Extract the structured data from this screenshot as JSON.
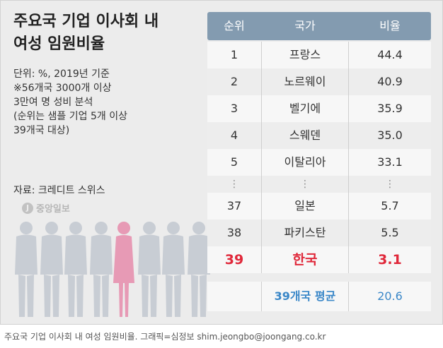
{
  "title_line1": "주요국 기업 이사회 내",
  "title_line2": "여성 임원비율",
  "unit": "단위: %, 2019년 기준",
  "notes": [
    "※56개국 3000개 이상",
    "3만여 명 성비 분석",
    "(순위는 샘플 기업 5개 이상",
    " 39개국 대상)"
  ],
  "source": "자료: 크레디트 스위스",
  "logo_text": "중앙일보",
  "caption": "주요국 기업 이사회 내 여성 임원비율. 그래픽=심정보 shim.jeongbo@joongang.co.kr",
  "colors": {
    "header": "#839bb0",
    "highlight": "#e0283a",
    "average": "#3a87c8",
    "female_figure": "#e79ab5",
    "figures": "#c8cdd4"
  },
  "chart_data": {
    "type": "table",
    "columns": [
      "순위",
      "국가",
      "비율"
    ],
    "rows": [
      {
        "rank": "1",
        "country": "프랑스",
        "value": "44.4"
      },
      {
        "rank": "2",
        "country": "노르웨이",
        "value": "40.9"
      },
      {
        "rank": "3",
        "country": "벨기에",
        "value": "35.9"
      },
      {
        "rank": "4",
        "country": "스웨덴",
        "value": "35.0"
      },
      {
        "rank": "5",
        "country": "이탈리아",
        "value": "33.1"
      },
      {
        "rank": "⋮",
        "country": "⋮",
        "value": "⋮"
      },
      {
        "rank": "37",
        "country": "일본",
        "value": "5.7"
      },
      {
        "rank": "38",
        "country": "파키스탄",
        "value": "5.5"
      },
      {
        "rank": "39",
        "country": "한국",
        "value": "3.1"
      }
    ],
    "highlight_row": 8,
    "average": {
      "label": "39개국 평균",
      "value": "20.6"
    }
  }
}
